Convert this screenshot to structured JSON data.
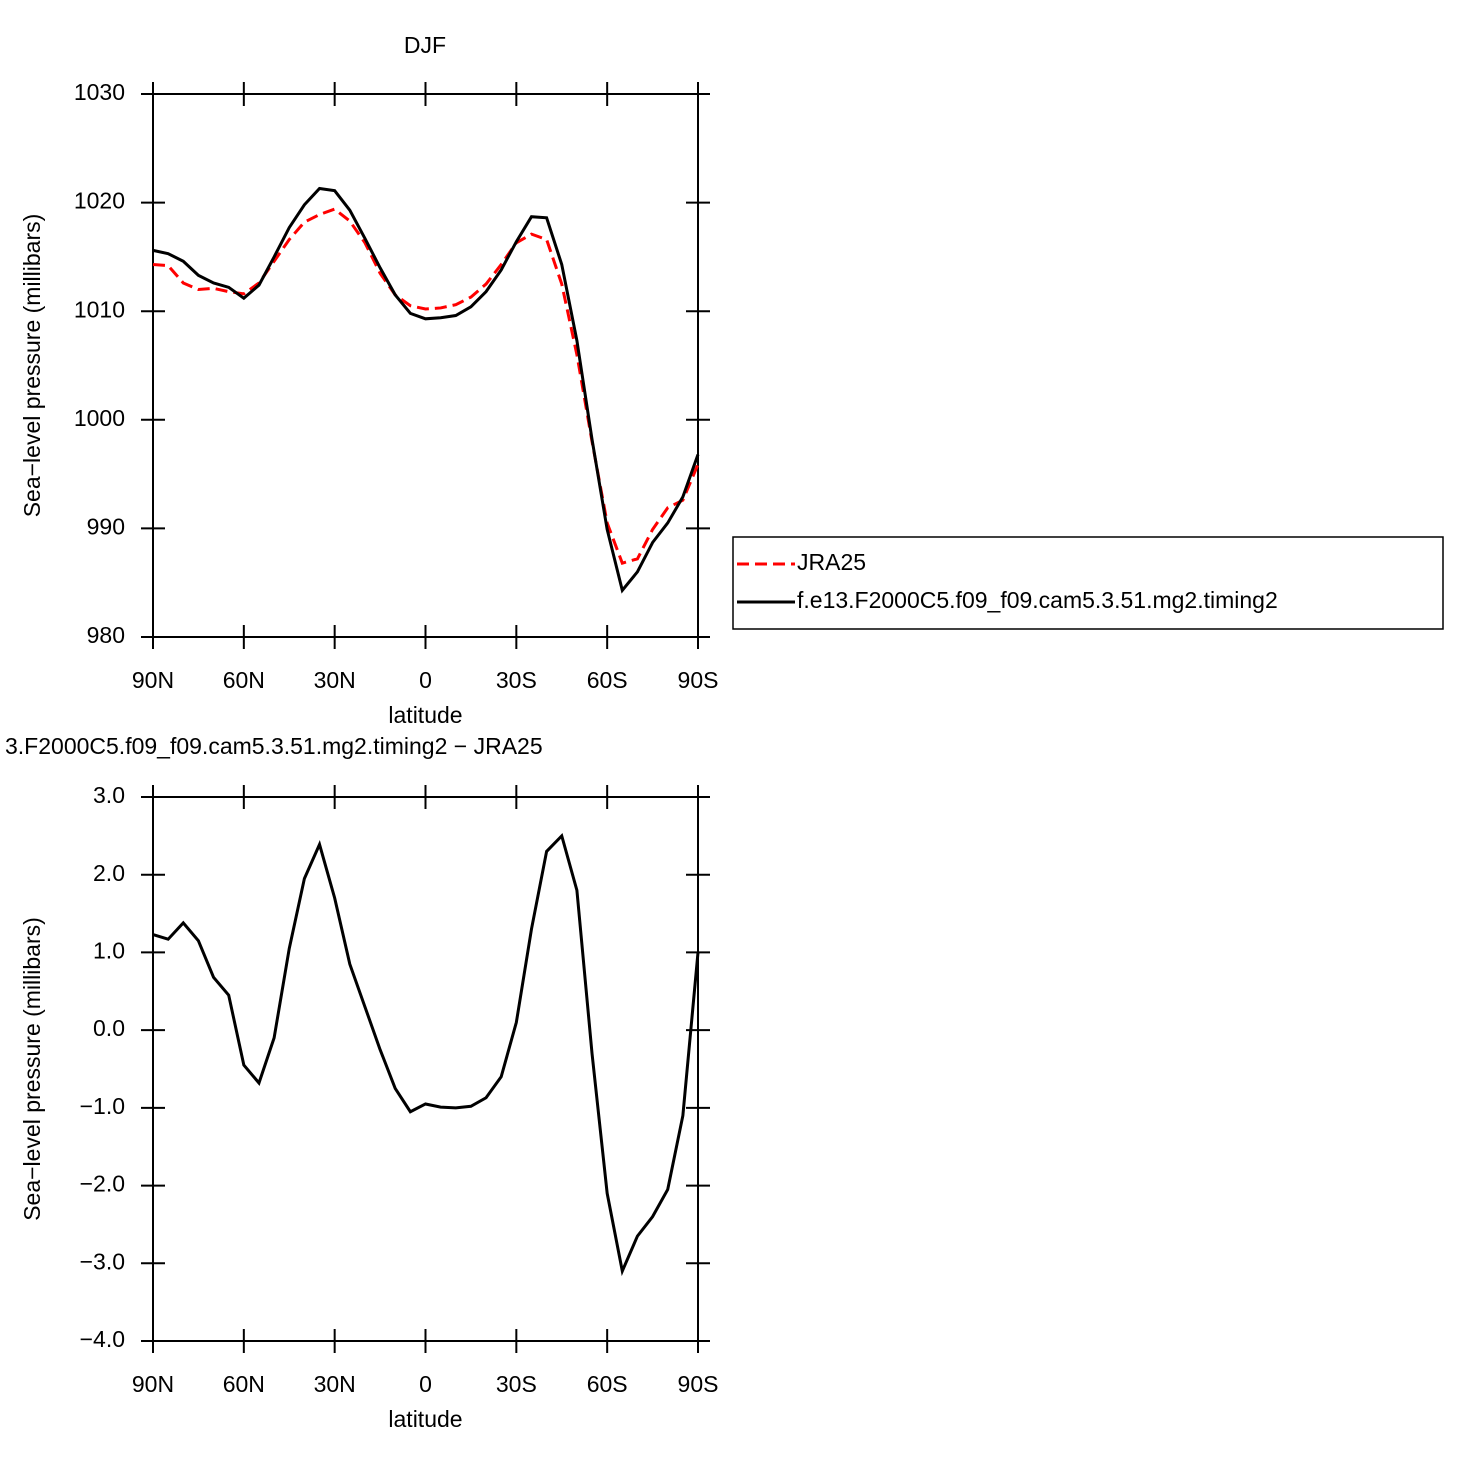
{
  "chart_data": [
    {
      "type": "line",
      "title": "DJF",
      "xlabel": "latitude",
      "ylabel": "Sea−level pressure (millibars)",
      "x": [
        90,
        85,
        80,
        75,
        70,
        65,
        60,
        55,
        50,
        45,
        40,
        35,
        30,
        25,
        20,
        15,
        10,
        5,
        0,
        -5,
        -10,
        -15,
        -20,
        -25,
        -30,
        -35,
        -40,
        -45,
        -50,
        -55,
        -60,
        -65,
        -70,
        -75,
        -80,
        -85,
        -90
      ],
      "series": [
        {
          "name": "JRA25",
          "color": "#ff0000",
          "dash": true,
          "values": [
            1014.3,
            1014.2,
            1012.6,
            1012.0,
            1012.1,
            1011.8,
            1011.6,
            1012.6,
            1014.6,
            1016.6,
            1018.2,
            1018.9,
            1019.4,
            1018.3,
            1016.3,
            1013.5,
            1011.5,
            1010.5,
            1010.2,
            1010.3,
            1010.6,
            1011.3,
            1012.5,
            1014.3,
            1016.3,
            1017.1,
            1016.6,
            1012.5,
            1006.0,
            998.0,
            990.5,
            986.8,
            987.2,
            989.9,
            991.9,
            992.6,
            995.9
          ]
        },
        {
          "name": "f.e13.F2000C5.f09_f09.cam5.3.51.mg2.timing2",
          "color": "#000000",
          "dash": false,
          "values": [
            1015.6,
            1015.3,
            1014.6,
            1013.3,
            1012.6,
            1012.2,
            1011.2,
            1012.4,
            1015.0,
            1017.7,
            1019.8,
            1021.3,
            1021.1,
            1019.3,
            1016.7,
            1014.0,
            1011.5,
            1009.8,
            1009.3,
            1009.4,
            1009.6,
            1010.4,
            1011.8,
            1013.8,
            1016.4,
            1018.7,
            1018.6,
            1014.3,
            1007.3,
            998.2,
            989.9,
            984.3,
            986.0,
            988.7,
            990.5,
            992.9,
            996.8
          ]
        }
      ],
      "xlim": [
        90,
        -90
      ],
      "xticks": [
        {
          "value": 90,
          "label": "90N"
        },
        {
          "value": 60,
          "label": "60N"
        },
        {
          "value": 30,
          "label": "30N"
        },
        0,
        {
          "value": -30,
          "label": "30S"
        },
        {
          "value": -60,
          "label": "60S"
        },
        {
          "value": -90,
          "label": "90S"
        }
      ],
      "ylim": [
        980,
        1030
      ],
      "yticks": [
        980,
        990,
        1000,
        1010,
        1020,
        1030
      ]
    },
    {
      "type": "line",
      "title": "3.F2000C5.f09_f09.cam5.3.51.mg2.timing2 − JRA25",
      "xlabel": "latitude",
      "ylabel": "Sea−level pressure (millibars)",
      "x": [
        90,
        85,
        80,
        75,
        70,
        65,
        60,
        55,
        50,
        45,
        40,
        35,
        30,
        25,
        20,
        15,
        10,
        5,
        0,
        -5,
        -10,
        -15,
        -20,
        -25,
        -30,
        -35,
        -40,
        -45,
        -50,
        -55,
        -60,
        -65,
        -70,
        -75,
        -80,
        -85,
        -90
      ],
      "series": [
        {
          "color": "#000000",
          "dash": false,
          "values": [
            1.23,
            1.17,
            1.38,
            1.15,
            0.68,
            0.45,
            -0.45,
            -0.68,
            -0.1,
            1.05,
            1.95,
            2.39,
            1.7,
            0.85,
            0.3,
            -0.25,
            -0.75,
            -1.05,
            -0.95,
            -0.99,
            -1.0,
            -0.98,
            -0.87,
            -0.6,
            0.1,
            1.3,
            2.3,
            2.5,
            1.8,
            -0.3,
            -2.1,
            -3.1,
            -2.65,
            -2.4,
            -2.05,
            -1.1,
            1.0
          ]
        }
      ],
      "xlim": [
        90,
        -90
      ],
      "xticks": [
        {
          "value": 90,
          "label": "90N"
        },
        {
          "value": 60,
          "label": "60N"
        },
        {
          "value": 30,
          "label": "30N"
        },
        0,
        {
          "value": -30,
          "label": "30S"
        },
        {
          "value": -60,
          "label": "60S"
        },
        {
          "value": -90,
          "label": "90S"
        }
      ],
      "ylim": [
        -4,
        3
      ],
      "yticks": [
        {
          "value": -4,
          "label": "−4.0"
        },
        {
          "value": -3,
          "label": "−3.0"
        },
        {
          "value": -2,
          "label": "−2.0"
        },
        {
          "value": -1,
          "label": "−1.0"
        },
        {
          "value": 0,
          "label": "0.0"
        },
        {
          "value": 1,
          "label": "1.0"
        },
        {
          "value": 2,
          "label": "2.0"
        },
        {
          "value": 3,
          "label": "3.0"
        }
      ]
    }
  ]
}
